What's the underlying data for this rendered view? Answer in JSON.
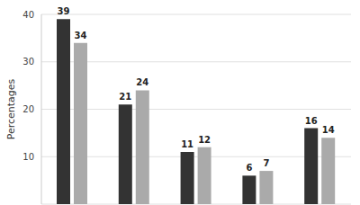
{
  "chart_data": {
    "type": "bar",
    "y_label": "Percentages",
    "categories": [
      null,
      null,
      null,
      null,
      null
    ],
    "series": [
      {
        "color": "#333333",
        "values": [
          39,
          21,
          11,
          6,
          16
        ]
      },
      {
        "color": "#aaaaaa",
        "values": [
          34,
          24,
          12,
          7,
          14
        ]
      }
    ],
    "ylim": [
      0,
      40
    ],
    "yticks": [
      10,
      20,
      30,
      40
    ],
    "grid": true,
    "data_labels": true
  }
}
